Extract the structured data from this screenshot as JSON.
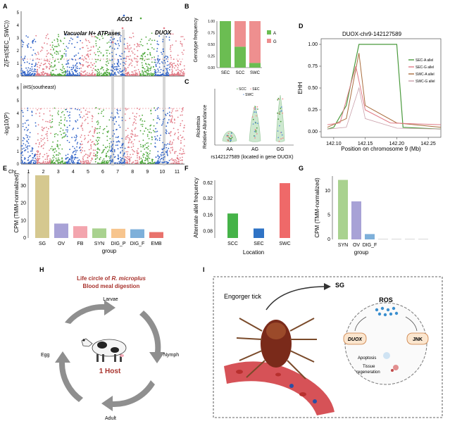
{
  "panels": {
    "A": {
      "letter": "A",
      "top_ylabel": "Z(Fst(SEC_SWC))",
      "bottom_ylabel": "-log10(P)",
      "bottom_label": "iHS(southeast)",
      "top_yticks": [
        "0",
        "1",
        "2",
        "3",
        "4",
        "5"
      ],
      "bottom_yticks": [
        "0",
        "1",
        "2",
        "3",
        "4",
        "5",
        "6"
      ],
      "gene_labels": [
        "ACO1",
        "Vacuolar H+ ATPases",
        "DUOX"
      ],
      "chr_label": "Chr",
      "chromosomes": [
        "1",
        "2",
        "3",
        "4",
        "5",
        "6",
        "7",
        "8",
        "9",
        "10",
        "11"
      ],
      "colors": [
        "#2f62c7",
        "#e27a86",
        "#4ea83c"
      ]
    },
    "B": {
      "letter": "B",
      "ylabel": "Genotype frequency",
      "categories": [
        "SEC",
        "SCC",
        "SWC"
      ],
      "legend": [
        "A",
        "G"
      ],
      "yticks": [
        "0.00",
        "0.25",
        "0.50",
        "0.75",
        "1.00"
      ],
      "chart_data": {
        "type": "bar",
        "categories": [
          "SEC",
          "SCC",
          "SWC"
        ],
        "series": [
          {
            "name": "A",
            "values": [
              1.0,
              0.45,
              0.1
            ],
            "color": "#6bbd52"
          },
          {
            "name": "G",
            "values": [
              0.0,
              0.55,
              0.9
            ],
            "color": "#ee8f8f"
          }
        ],
        "ylabel": "Genotype frequency",
        "ylim": [
          0,
          1
        ]
      }
    },
    "C": {
      "letter": "C",
      "ylabel_line1": "Rickettsia",
      "ylabel_line2": "Relative Abundance",
      "xlabel": "rs142127589 (located in gene DUOX)",
      "categories": [
        "AA",
        "AG",
        "GG"
      ],
      "legend": [
        "SCC",
        "SEC",
        "SWC"
      ]
    },
    "D": {
      "letter": "D",
      "title": "DUOX-chr9-142127589",
      "ylabel": "EHH",
      "xlabel": "Position on chromosome 9 (Mb)",
      "xticks": [
        "142.10",
        "142.15",
        "142.20",
        "142.25"
      ],
      "yticks": [
        "0.00",
        "0.25",
        "0.50",
        "0.75",
        "1.00"
      ],
      "legend": [
        "SEC-A allel",
        "SEC-G allel",
        "SWC-A allel",
        "SWC-G allel"
      ]
    },
    "E": {
      "letter": "E",
      "ylabel": "CPM (TMM-normalized)",
      "xlabel": "group",
      "yticks": [
        "0",
        "10",
        "20",
        "30"
      ],
      "chart_data": {
        "type": "bar",
        "categories": [
          "SG",
          "OV",
          "FB",
          "SYN",
          "DIG_P",
          "DIG_F",
          "EMB"
        ],
        "values": [
          36,
          8.3,
          6.8,
          5.5,
          5.3,
          5.0,
          3.4
        ],
        "colors": [
          "#d5c88f",
          "#a8a2d6",
          "#f3a5ae",
          "#a9d28f",
          "#f7c58e",
          "#7eb0da",
          "#e9726c"
        ],
        "ylabel": "CPM (TMM-normalized)",
        "xlabel": "group",
        "ylim": [
          0,
          38
        ]
      }
    },
    "F": {
      "letter": "F",
      "ylabel": "Alternate allel frequency",
      "xlabel": "Location",
      "yticks": [
        "0.08",
        "0.16",
        "0.32",
        "0.62"
      ],
      "chart_data": {
        "type": "bar",
        "categories": [
          "SCC",
          "SEC",
          "SWC"
        ],
        "values": [
          0.17,
          0.09,
          0.62
        ],
        "colors": [
          "#45b348",
          "#2f73c5",
          "#ef6969"
        ],
        "ylabel": "Alternate allel frequency",
        "xlabel": "Location",
        "log_scale": true
      }
    },
    "G": {
      "letter": "G",
      "ylabel": "CPM (TMM-normalized)",
      "xlabel": "group",
      "categories_shown": [
        "SYN",
        "OV",
        "DIG_F"
      ],
      "yticks": [
        "0",
        "5",
        "10"
      ],
      "chart_data": {
        "type": "bar",
        "values": [
          12.2,
          7.8,
          1.1,
          0.1,
          0.1,
          0.1,
          0.1
        ],
        "colors": [
          "#a9d28f",
          "#a8a2d6",
          "#7eb0da",
          "#cccccc",
          "#cccccc",
          "#cccccc",
          "#cccccc"
        ],
        "ylabel": "CPM (TMM-normalized)",
        "xlabel": "group",
        "ylim": [
          0,
          13
        ]
      }
    },
    "H": {
      "letter": "H",
      "title_prefix": "Life circle of ",
      "title_species": "R. microplus",
      "subtitle": "Blood meal digestion",
      "stages": [
        "Larvae",
        "Nymph",
        "Adult",
        "Egg"
      ],
      "host_label": "1 Host"
    },
    "I": {
      "letter": "I",
      "tick_label": "Engorger tick",
      "sg_label": "SG",
      "ros_label": "ROS",
      "duox_label": "DUOX",
      "jnk_label": "JNK",
      "apoptosis_label": "Apoptosis",
      "tissue_label_line1": "Tissue",
      "tissue_label_line2": "regeneration"
    }
  }
}
